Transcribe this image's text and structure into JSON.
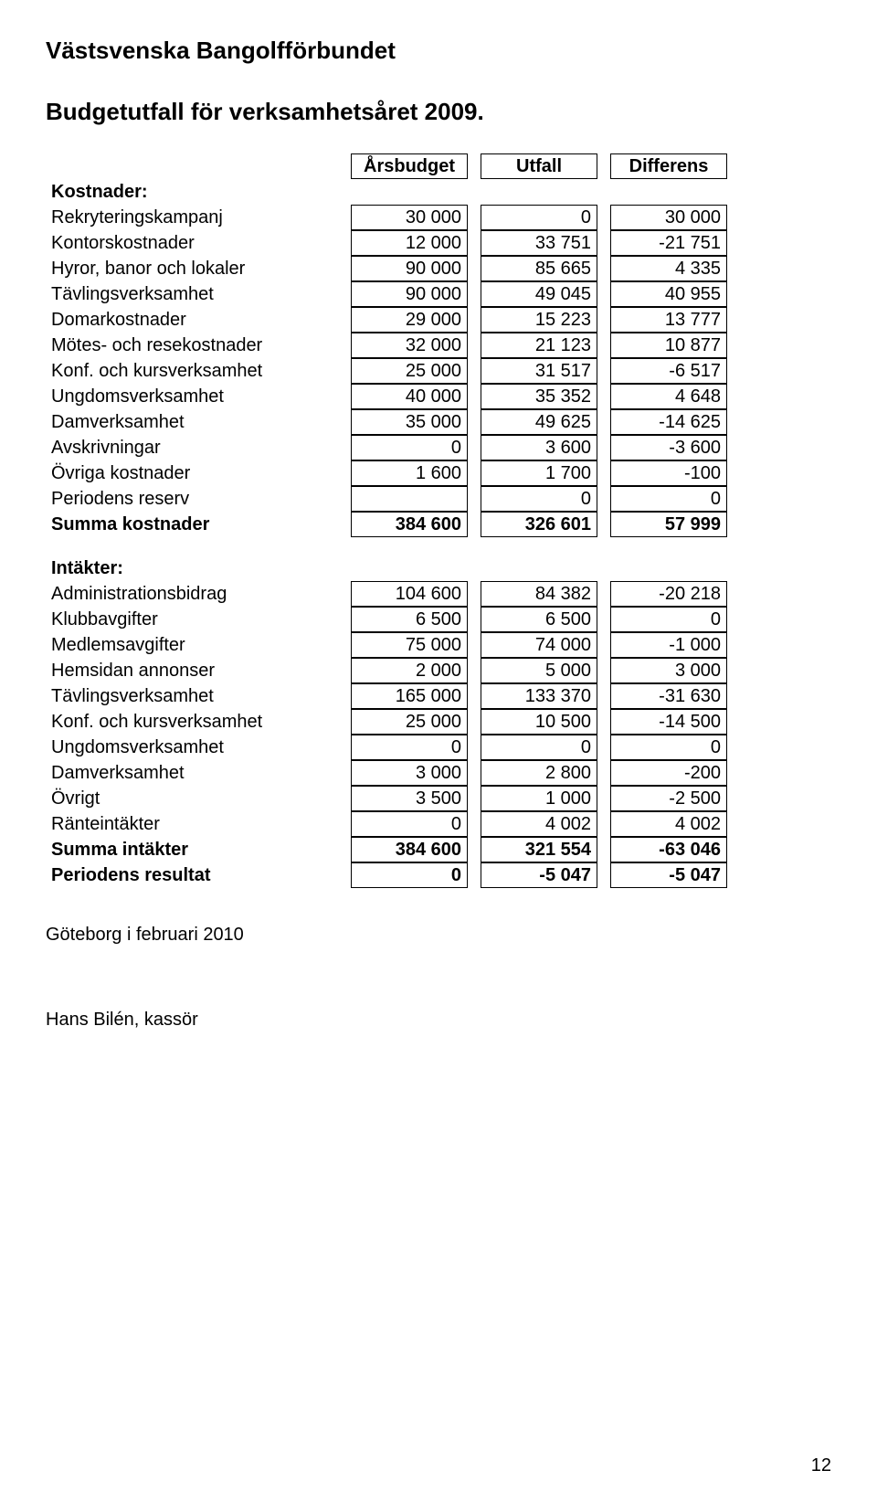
{
  "org": "Västsvenska Bangolfförbundet",
  "subtitle": "Budgetutfall för verksamhetsåret 2009.",
  "headers": {
    "budget": "Årsbudget",
    "actual": "Utfall",
    "diff": "Differens"
  },
  "cost_section": "Kostnader:",
  "income_section": "Intäkter:",
  "costs": [
    {
      "label": "Rekryteringskampanj",
      "b": "30 000",
      "a": "0",
      "d": "30 000"
    },
    {
      "label": "Kontorskostnader",
      "b": "12 000",
      "a": "33 751",
      "d": "-21 751"
    },
    {
      "label": "Hyror, banor och lokaler",
      "b": "90 000",
      "a": "85 665",
      "d": "4 335"
    },
    {
      "label": "Tävlingsverksamhet",
      "b": "90 000",
      "a": "49 045",
      "d": "40 955"
    },
    {
      "label": "Domarkostnader",
      "b": "29 000",
      "a": "15 223",
      "d": "13 777"
    },
    {
      "label": "Mötes- och resekostnader",
      "b": "32 000",
      "a": "21 123",
      "d": "10 877"
    },
    {
      "label": "Konf. och kursverksamhet",
      "b": "25 000",
      "a": "31 517",
      "d": "-6 517"
    },
    {
      "label": "Ungdomsverksamhet",
      "b": "40 000",
      "a": "35 352",
      "d": "4 648"
    },
    {
      "label": "Damverksamhet",
      "b": "35 000",
      "a": "49 625",
      "d": "-14 625"
    },
    {
      "label": "Avskrivningar",
      "b": "0",
      "a": "3 600",
      "d": "-3 600"
    },
    {
      "label": "Övriga kostnader",
      "b": "1 600",
      "a": "1 700",
      "d": "-100"
    },
    {
      "label": "Periodens reserv",
      "b": "",
      "a": "0",
      "d": "0"
    }
  ],
  "cost_sum": {
    "label": "Summa kostnader",
    "b": "384 600",
    "a": "326 601",
    "d": "57 999"
  },
  "incomes": [
    {
      "label": "Administrationsbidrag",
      "b": "104 600",
      "a": "84 382",
      "d": "-20 218"
    },
    {
      "label": "Klubbavgifter",
      "b": "6 500",
      "a": "6 500",
      "d": "0"
    },
    {
      "label": "Medlemsavgifter",
      "b": "75 000",
      "a": "74 000",
      "d": "-1 000"
    },
    {
      "label": "Hemsidan annonser",
      "b": "2 000",
      "a": "5 000",
      "d": "3 000"
    },
    {
      "label": "Tävlingsverksamhet",
      "b": "165 000",
      "a": "133 370",
      "d": "-31 630"
    },
    {
      "label": "Konf. och kursverksamhet",
      "b": "25 000",
      "a": "10 500",
      "d": "-14 500"
    },
    {
      "label": "Ungdomsverksamhet",
      "b": "0",
      "a": "0",
      "d": "0"
    },
    {
      "label": "Damverksamhet",
      "b": "3 000",
      "a": "2 800",
      "d": "-200"
    },
    {
      "label": "Övrigt",
      "b": "3 500",
      "a": "1 000",
      "d": "-2 500"
    },
    {
      "label": "Ränteintäkter",
      "b": "0",
      "a": "4 002",
      "d": "4 002"
    }
  ],
  "income_sum": {
    "label": "Summa intäkter",
    "b": "384 600",
    "a": "321 554",
    "d": "-63 046"
  },
  "result": {
    "label": "Periodens resultat",
    "b": "0",
    "a": "-5 047",
    "d": "-5 047"
  },
  "footer_location": "Göteborg i februari 2010",
  "signer": "Hans Bilén, kassör",
  "page_number": "12"
}
